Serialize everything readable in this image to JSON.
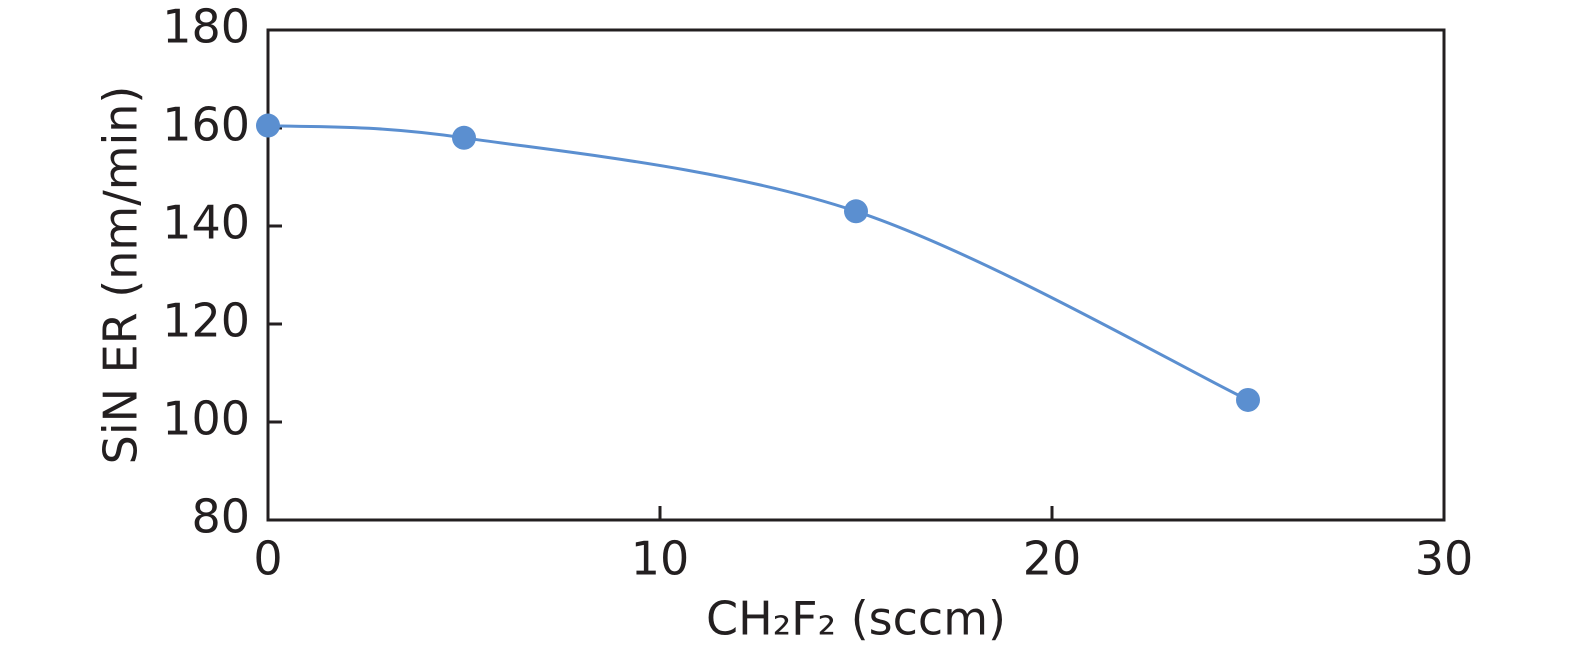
{
  "chart_data": {
    "type": "line",
    "x_label": "CH₂F₂ (sccm)",
    "y_label": "SiN ER (nm/min)",
    "x": [
      0,
      5,
      15,
      25
    ],
    "values": [
      160.5,
      158,
      143,
      104.5
    ],
    "color": "#5b8fd0",
    "smooth": true,
    "markers": true,
    "xlim": [
      0,
      30
    ],
    "xticks": [
      0,
      10,
      20,
      30
    ],
    "ylim": [
      80,
      180
    ],
    "yticks": [
      80,
      100,
      120,
      140,
      160,
      180
    ],
    "grid": false
  }
}
